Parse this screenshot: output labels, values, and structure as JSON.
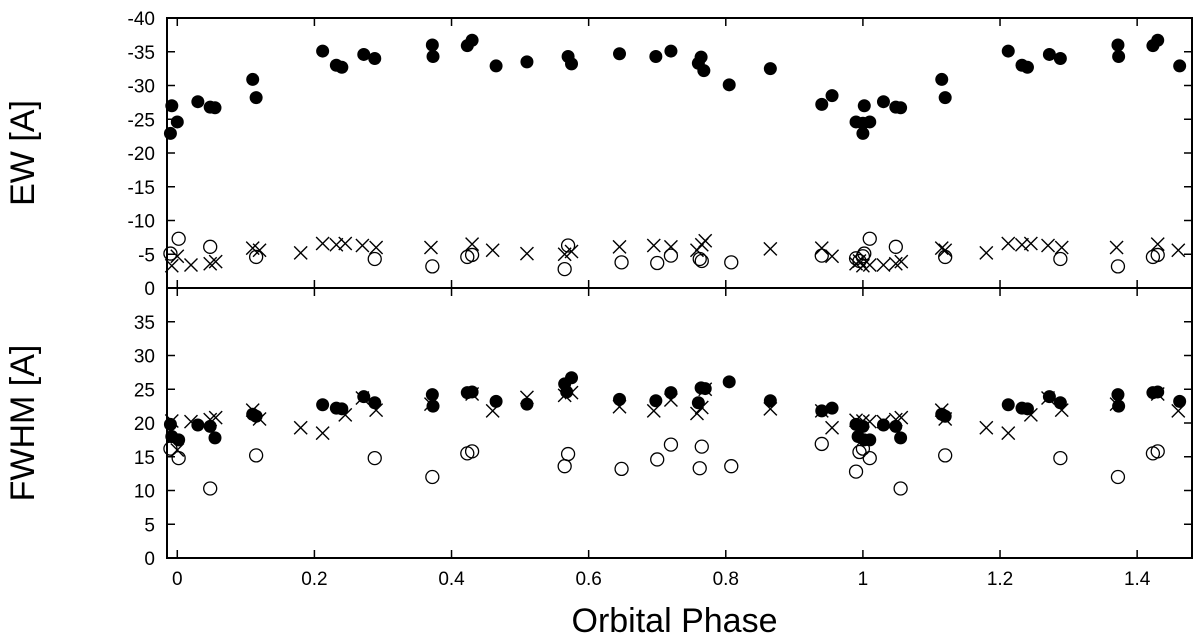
{
  "chart_data": [
    {
      "type": "scatter",
      "ylabel": "EW [A]",
      "xlabel": "",
      "xlim": [
        -0.015,
        1.48
      ],
      "ylim": [
        0,
        -40
      ],
      "y_reversed": true,
      "yticks": [
        0,
        -5,
        -10,
        -15,
        -20,
        -25,
        -30,
        -35,
        -40
      ],
      "ytick_labels": [
        "0",
        "-5",
        "-10",
        "-15",
        "-20",
        "-25",
        "-30",
        "-35",
        "-40"
      ],
      "series": [
        {
          "marker": "filled-circle",
          "points": [
            [
              -0.01,
              -22.9
            ],
            [
              -0.008,
              -27.0
            ],
            [
              0.0,
              -24.6
            ],
            [
              0.03,
              -27.6
            ],
            [
              0.048,
              -26.8
            ],
            [
              0.055,
              -26.7
            ],
            [
              0.11,
              -30.9
            ],
            [
              0.115,
              -28.2
            ],
            [
              0.212,
              -35.1
            ],
            [
              0.232,
              -33.0
            ],
            [
              0.24,
              -32.7
            ],
            [
              0.272,
              -34.6
            ],
            [
              0.288,
              -34.0
            ],
            [
              0.372,
              -36.0
            ],
            [
              0.373,
              -34.3
            ],
            [
              0.423,
              -35.9
            ],
            [
              0.43,
              -36.7
            ],
            [
              0.465,
              -32.9
            ],
            [
              0.51,
              -33.5
            ],
            [
              0.57,
              -34.3
            ],
            [
              0.575,
              -33.2
            ],
            [
              0.645,
              -34.7
            ],
            [
              0.698,
              -34.3
            ],
            [
              0.72,
              -35.1
            ],
            [
              0.76,
              -33.3
            ],
            [
              0.764,
              -34.2
            ],
            [
              0.768,
              -32.2
            ],
            [
              0.805,
              -30.1
            ],
            [
              0.865,
              -32.5
            ],
            [
              0.94,
              -27.2
            ],
            [
              0.955,
              -28.5
            ],
            [
              0.99,
              -24.6
            ],
            [
              1.0,
              -24.4
            ],
            [
              1.002,
              -27.0
            ],
            [
              1.0,
              -22.9
            ],
            [
              1.01,
              -24.6
            ],
            [
              1.03,
              -27.6
            ],
            [
              1.048,
              -26.8
            ],
            [
              1.055,
              -26.7
            ],
            [
              1.115,
              -30.9
            ],
            [
              1.12,
              -28.2
            ],
            [
              1.212,
              -35.1
            ],
            [
              1.232,
              -33.0
            ],
            [
              1.24,
              -32.7
            ],
            [
              1.272,
              -34.6
            ],
            [
              1.288,
              -34.0
            ],
            [
              1.372,
              -36.0
            ],
            [
              1.373,
              -34.3
            ],
            [
              1.423,
              -35.9
            ],
            [
              1.43,
              -36.7
            ],
            [
              1.462,
              -32.9
            ]
          ]
        },
        {
          "marker": "open-circle",
          "points": [
            [
              -0.01,
              -5.1
            ],
            [
              0.002,
              -7.3
            ],
            [
              0.048,
              -6.1
            ],
            [
              0.115,
              -4.6
            ],
            [
              0.288,
              -4.3
            ],
            [
              0.372,
              -3.2
            ],
            [
              0.423,
              -4.6
            ],
            [
              0.43,
              -4.9
            ],
            [
              0.565,
              -2.8
            ],
            [
              0.57,
              -6.3
            ],
            [
              0.648,
              -3.8
            ],
            [
              0.7,
              -3.7
            ],
            [
              0.72,
              -4.8
            ],
            [
              0.762,
              -4.3
            ],
            [
              0.765,
              -4.0
            ],
            [
              0.808,
              -3.8
            ],
            [
              0.94,
              -4.8
            ],
            [
              0.99,
              -4.4
            ],
            [
              0.995,
              -4.0
            ],
            [
              1.0,
              -4.7
            ],
            [
              1.002,
              -5.1
            ],
            [
              1.01,
              -7.3
            ],
            [
              1.048,
              -6.1
            ],
            [
              1.12,
              -4.6
            ],
            [
              1.288,
              -4.3
            ],
            [
              1.372,
              -3.2
            ],
            [
              1.423,
              -4.6
            ],
            [
              1.43,
              -4.9
            ]
          ]
        },
        {
          "marker": "cross",
          "points": [
            [
              -0.008,
              -3.3
            ],
            [
              0.0,
              -4.7
            ],
            [
              0.02,
              -3.4
            ],
            [
              0.048,
              -3.6
            ],
            [
              0.056,
              -3.9
            ],
            [
              0.11,
              -5.9
            ],
            [
              0.12,
              -5.6
            ],
            [
              0.18,
              -5.2
            ],
            [
              0.212,
              -6.6
            ],
            [
              0.232,
              -6.4
            ],
            [
              0.245,
              -6.6
            ],
            [
              0.27,
              -6.3
            ],
            [
              0.29,
              -6.0
            ],
            [
              0.37,
              -6.0
            ],
            [
              0.43,
              -6.5
            ],
            [
              0.46,
              -5.6
            ],
            [
              0.51,
              -5.1
            ],
            [
              0.565,
              -5.0
            ],
            [
              0.575,
              -5.4
            ],
            [
              0.645,
              -6.1
            ],
            [
              0.695,
              -6.3
            ],
            [
              0.72,
              -6.1
            ],
            [
              0.758,
              -5.6
            ],
            [
              0.765,
              -6.4
            ],
            [
              0.77,
              -7.0
            ],
            [
              0.865,
              -5.8
            ],
            [
              0.94,
              -5.9
            ],
            [
              0.955,
              -4.7
            ],
            [
              0.99,
              -3.6
            ],
            [
              0.995,
              -4.0
            ],
            [
              1.0,
              -3.3
            ],
            [
              1.01,
              -3.4
            ],
            [
              1.03,
              -3.4
            ],
            [
              1.048,
              -3.6
            ],
            [
              1.056,
              -3.9
            ],
            [
              1.115,
              -5.9
            ],
            [
              1.12,
              -5.6
            ],
            [
              1.18,
              -5.2
            ],
            [
              1.212,
              -6.6
            ],
            [
              1.232,
              -6.4
            ],
            [
              1.245,
              -6.6
            ],
            [
              1.27,
              -6.3
            ],
            [
              1.29,
              -6.0
            ],
            [
              1.37,
              -6.0
            ],
            [
              1.43,
              -6.5
            ],
            [
              1.46,
              -5.6
            ]
          ]
        }
      ]
    },
    {
      "type": "scatter",
      "ylabel": "FWHM [A]",
      "xlabel": "Orbital Phase",
      "xlim": [
        -0.015,
        1.48
      ],
      "ylim": [
        0,
        40
      ],
      "yticks": [
        0,
        5,
        10,
        15,
        20,
        25,
        30,
        35
      ],
      "ytick_labels": [
        "0",
        "5",
        "10",
        "15",
        "20",
        "25",
        "30",
        "35"
      ],
      "xticks": [
        0,
        0.2,
        0.4,
        0.6,
        0.8,
        1.0,
        1.2,
        1.4
      ],
      "xtick_labels": [
        "0",
        "0.2",
        "0.4",
        "0.6",
        "0.8",
        "1",
        "1.2",
        "1.4"
      ],
      "series": [
        {
          "marker": "filled-circle",
          "points": [
            [
              -0.01,
              19.8
            ],
            [
              -0.008,
              18.0
            ],
            [
              0.002,
              17.5
            ],
            [
              0.03,
              19.7
            ],
            [
              0.048,
              19.5
            ],
            [
              0.055,
              17.8
            ],
            [
              0.11,
              21.3
            ],
            [
              0.115,
              21.0
            ],
            [
              0.212,
              22.7
            ],
            [
              0.232,
              22.2
            ],
            [
              0.24,
              22.1
            ],
            [
              0.272,
              23.9
            ],
            [
              0.288,
              23.0
            ],
            [
              0.372,
              24.2
            ],
            [
              0.373,
              22.5
            ],
            [
              0.423,
              24.5
            ],
            [
              0.43,
              24.6
            ],
            [
              0.465,
              23.2
            ],
            [
              0.51,
              22.8
            ],
            [
              0.565,
              25.8
            ],
            [
              0.568,
              24.6
            ],
            [
              0.575,
              26.7
            ],
            [
              0.645,
              23.5
            ],
            [
              0.698,
              23.3
            ],
            [
              0.72,
              24.5
            ],
            [
              0.76,
              23.0
            ],
            [
              0.764,
              25.2
            ],
            [
              0.77,
              25.1
            ],
            [
              0.805,
              26.1
            ],
            [
              0.865,
              23.3
            ],
            [
              0.94,
              21.8
            ],
            [
              0.955,
              22.2
            ],
            [
              0.99,
              19.8
            ],
            [
              0.993,
              18.0
            ],
            [
              1.0,
              19.5
            ],
            [
              1.002,
              17.5
            ],
            [
              1.01,
              17.5
            ],
            [
              1.03,
              19.7
            ],
            [
              1.048,
              19.5
            ],
            [
              1.055,
              17.8
            ],
            [
              1.115,
              21.3
            ],
            [
              1.12,
              21.0
            ],
            [
              1.212,
              22.7
            ],
            [
              1.232,
              22.2
            ],
            [
              1.24,
              22.1
            ],
            [
              1.272,
              23.9
            ],
            [
              1.288,
              23.0
            ],
            [
              1.372,
              24.2
            ],
            [
              1.373,
              22.5
            ],
            [
              1.423,
              24.5
            ],
            [
              1.43,
              24.6
            ],
            [
              1.462,
              23.2
            ]
          ]
        },
        {
          "marker": "open-circle",
          "points": [
            [
              -0.01,
              16.2
            ],
            [
              0.002,
              14.8
            ],
            [
              0.048,
              10.3
            ],
            [
              0.115,
              15.2
            ],
            [
              0.288,
              14.8
            ],
            [
              0.372,
              12.0
            ],
            [
              0.423,
              15.5
            ],
            [
              0.43,
              15.8
            ],
            [
              0.565,
              13.6
            ],
            [
              0.57,
              15.4
            ],
            [
              0.648,
              13.2
            ],
            [
              0.7,
              14.6
            ],
            [
              0.72,
              16.8
            ],
            [
              0.762,
              13.3
            ],
            [
              0.765,
              16.5
            ],
            [
              0.808,
              13.6
            ],
            [
              0.94,
              16.9
            ],
            [
              0.99,
              12.8
            ],
            [
              0.995,
              15.7
            ],
            [
              1.0,
              16.2
            ],
            [
              1.01,
              14.8
            ],
            [
              1.055,
              10.3
            ],
            [
              1.12,
              15.2
            ],
            [
              1.288,
              14.8
            ],
            [
              1.372,
              12.0
            ],
            [
              1.423,
              15.5
            ],
            [
              1.43,
              15.8
            ]
          ]
        },
        {
          "marker": "cross",
          "points": [
            [
              -0.008,
              20.3
            ],
            [
              0.0,
              16.0
            ],
            [
              0.02,
              20.2
            ],
            [
              0.048,
              20.5
            ],
            [
              0.056,
              20.8
            ],
            [
              0.11,
              21.9
            ],
            [
              0.12,
              20.6
            ],
            [
              0.18,
              19.3
            ],
            [
              0.212,
              18.5
            ],
            [
              0.245,
              21.2
            ],
            [
              0.27,
              23.7
            ],
            [
              0.29,
              21.9
            ],
            [
              0.37,
              22.8
            ],
            [
              0.43,
              24.3
            ],
            [
              0.46,
              21.8
            ],
            [
              0.51,
              23.8
            ],
            [
              0.565,
              24.1
            ],
            [
              0.575,
              24.5
            ],
            [
              0.645,
              22.4
            ],
            [
              0.695,
              21.8
            ],
            [
              0.72,
              23.4
            ],
            [
              0.758,
              21.4
            ],
            [
              0.765,
              22.3
            ],
            [
              0.77,
              25.0
            ],
            [
              0.865,
              22.1
            ],
            [
              0.94,
              21.8
            ],
            [
              0.955,
              19.3
            ],
            [
              0.99,
              20.4
            ],
            [
              0.995,
              18.5
            ],
            [
              1.0,
              20.3
            ],
            [
              1.01,
              20.2
            ],
            [
              1.03,
              20.2
            ],
            [
              1.048,
              20.5
            ],
            [
              1.056,
              20.8
            ],
            [
              1.115,
              21.9
            ],
            [
              1.12,
              20.6
            ],
            [
              1.18,
              19.3
            ],
            [
              1.212,
              18.5
            ],
            [
              1.245,
              21.2
            ],
            [
              1.27,
              23.7
            ],
            [
              1.29,
              21.9
            ],
            [
              1.37,
              22.8
            ],
            [
              1.43,
              24.3
            ],
            [
              1.46,
              21.8
            ]
          ]
        }
      ]
    }
  ]
}
